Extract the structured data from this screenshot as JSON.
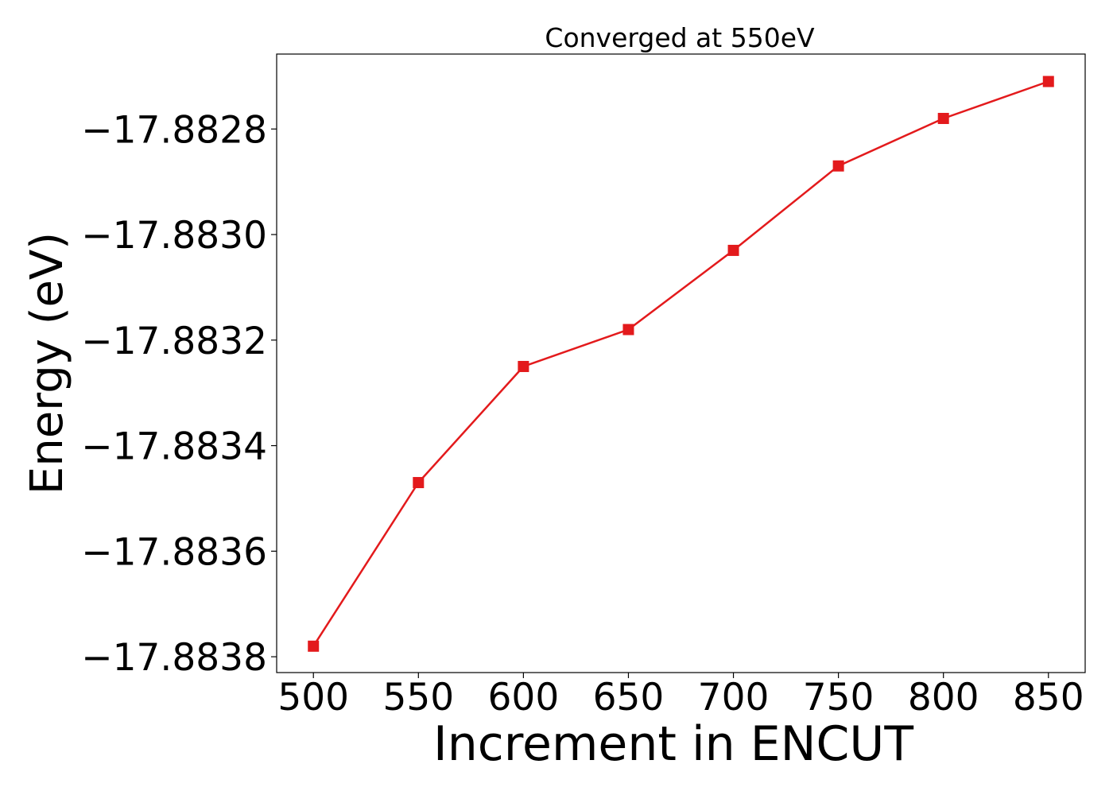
{
  "chart_data": {
    "type": "line",
    "title": "Converged at 550eV",
    "xlabel": "Increment in ENCUT",
    "ylabel": "Energy (eV)",
    "x": [
      500,
      550,
      600,
      650,
      700,
      750,
      800,
      850
    ],
    "series": [
      {
        "values": [
          -17.88378,
          -17.88347,
          -17.88325,
          -17.88318,
          -17.88303,
          -17.88287,
          -17.88278,
          -17.88271
        ],
        "color": "#e31a1c",
        "marker": "square"
      }
    ],
    "xticks": [
      500,
      550,
      600,
      650,
      700,
      750,
      800,
      850
    ],
    "xtick_labels": [
      "500",
      "550",
      "600",
      "650",
      "700",
      "750",
      "800",
      "850"
    ],
    "yticks": [
      -17.8838,
      -17.8836,
      -17.8834,
      -17.8832,
      -17.883,
      -17.8828
    ],
    "ytick_labels": [
      "−17.8838",
      "−17.8836",
      "−17.8834",
      "−17.8832",
      "−17.8830",
      "−17.8828"
    ],
    "xlim": [
      482.5,
      867.5
    ],
    "ylim": [
      -17.88383,
      -17.882658
    ],
    "grid": false,
    "legend": false
  }
}
